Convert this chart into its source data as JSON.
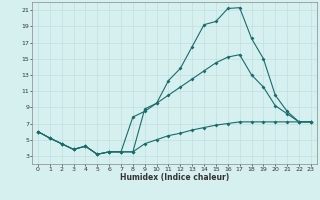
{
  "xlabel": "Humidex (Indice chaleur)",
  "background_color": "#d6f0f0",
  "line_color": "#1a6b6b",
  "grid_color": "#c0e0e0",
  "xlim": [
    -0.5,
    23.5
  ],
  "ylim": [
    2,
    22
  ],
  "xticks": [
    0,
    1,
    2,
    3,
    4,
    5,
    6,
    7,
    8,
    9,
    10,
    11,
    12,
    13,
    14,
    15,
    16,
    17,
    18,
    19,
    20,
    21,
    22,
    23
  ],
  "yticks": [
    3,
    5,
    7,
    9,
    11,
    13,
    15,
    17,
    19,
    21
  ],
  "line1_x": [
    0,
    1,
    2,
    3,
    4,
    5,
    6,
    7,
    8,
    9,
    10,
    11,
    12,
    13,
    14,
    15,
    16,
    17,
    18,
    19,
    20,
    21,
    22,
    23
  ],
  "line1_y": [
    6,
    5.2,
    4.5,
    3.8,
    4.2,
    3.2,
    3.5,
    3.5,
    3.5,
    8.8,
    9.5,
    12.3,
    13.8,
    16.5,
    19.2,
    19.6,
    21.2,
    21.3,
    17.5,
    15,
    10.5,
    8.5,
    7.2,
    7.2
  ],
  "line2_x": [
    0,
    1,
    2,
    3,
    4,
    5,
    6,
    7,
    8,
    9,
    10,
    11,
    12,
    13,
    14,
    15,
    16,
    17,
    18,
    19,
    20,
    21,
    22,
    23
  ],
  "line2_y": [
    6,
    5.2,
    4.5,
    3.8,
    4.2,
    3.2,
    3.5,
    3.5,
    7.8,
    8.5,
    9.5,
    10.5,
    11.5,
    12.5,
    13.5,
    14.5,
    15.2,
    15.5,
    13.0,
    11.5,
    9.2,
    8.2,
    7.2,
    7.2
  ],
  "line3_x": [
    0,
    1,
    2,
    3,
    4,
    5,
    6,
    7,
    8,
    9,
    10,
    11,
    12,
    13,
    14,
    15,
    16,
    17,
    18,
    19,
    20,
    21,
    22,
    23
  ],
  "line3_y": [
    6,
    5.2,
    4.5,
    3.8,
    4.2,
    3.2,
    3.5,
    3.5,
    3.5,
    4.5,
    5.0,
    5.5,
    5.8,
    6.2,
    6.5,
    6.8,
    7.0,
    7.2,
    7.2,
    7.2,
    7.2,
    7.2,
    7.2,
    7.2
  ],
  "markersize": 2.0,
  "linewidth": 0.8,
  "xlabel_fontsize": 5.5,
  "tick_fontsize": 4.5
}
